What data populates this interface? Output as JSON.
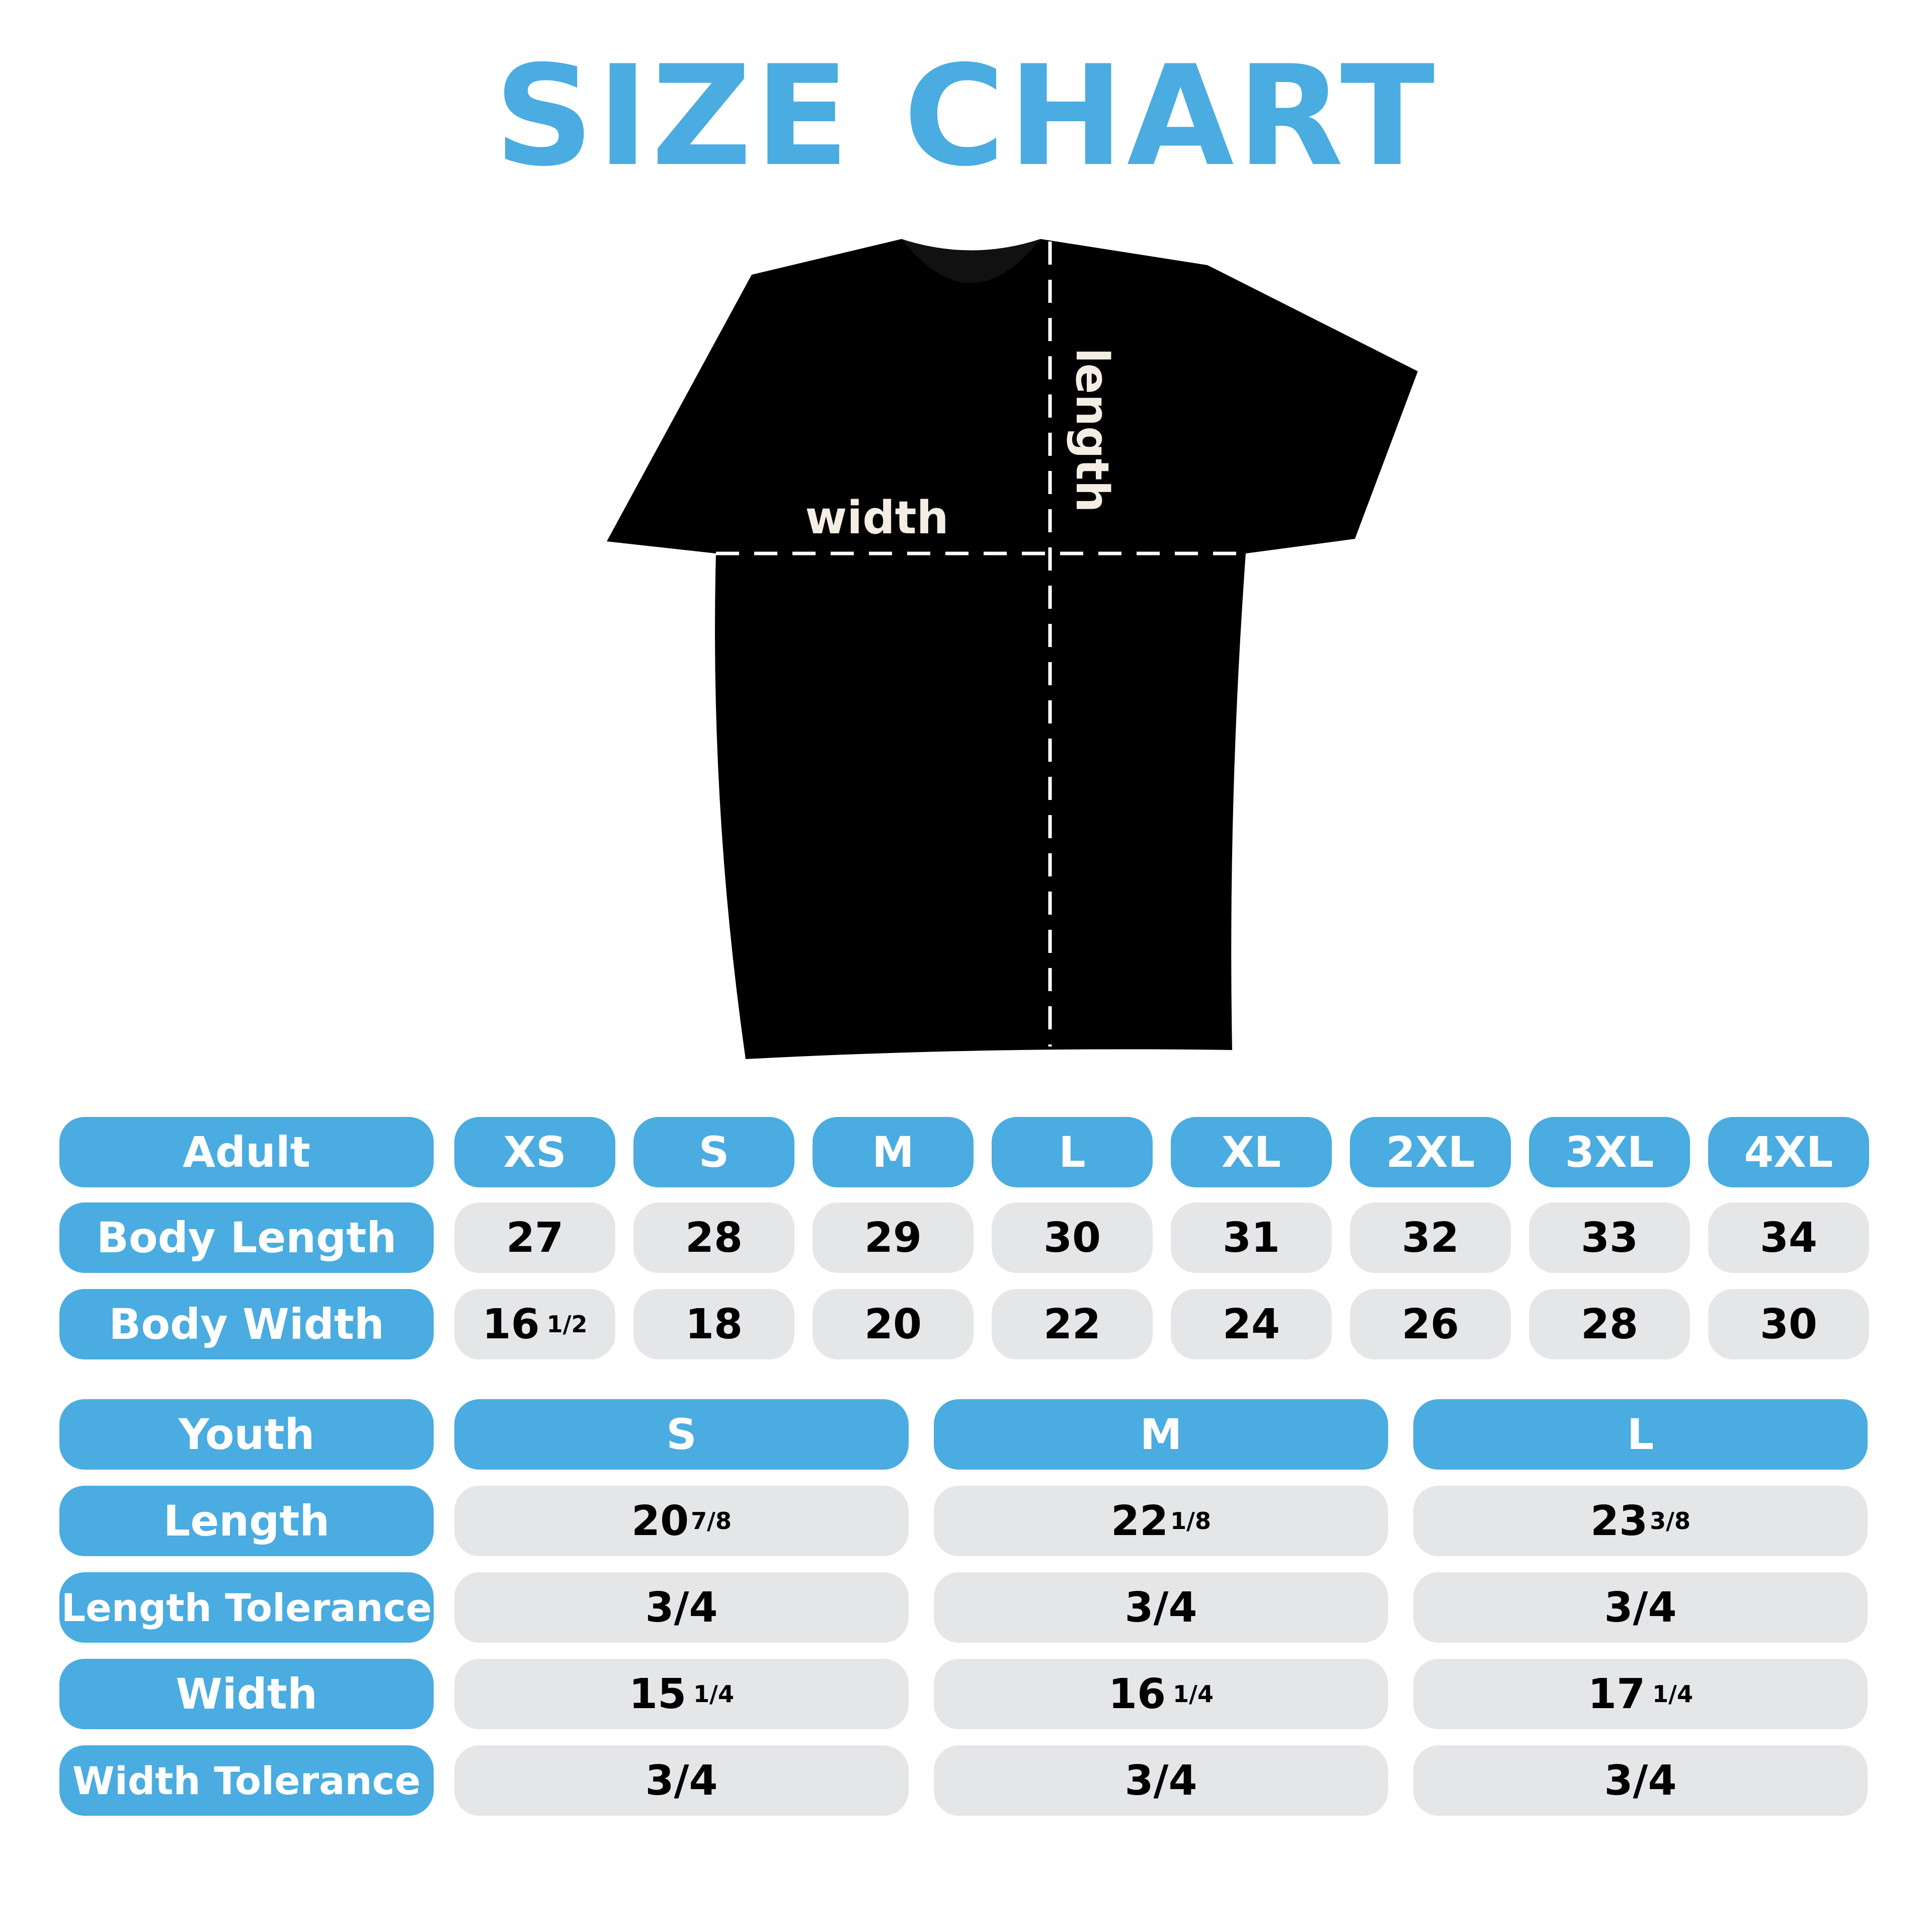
{
  "title": "SIZE CHART",
  "shirt": {
    "width_label": "width",
    "length_label": "length",
    "color": "#000000"
  },
  "colors": {
    "accent": "#4aace0",
    "cell": "#e5e6e8"
  },
  "adult": {
    "header": "Adult",
    "sizes": [
      "XS",
      "S",
      "M",
      "L",
      "XL",
      "2XL",
      "3XL",
      "4XL"
    ],
    "rows": [
      {
        "label": "Body Length",
        "values": [
          {
            "whole": "27"
          },
          {
            "whole": "28"
          },
          {
            "whole": "29"
          },
          {
            "whole": "30"
          },
          {
            "whole": "31"
          },
          {
            "whole": "32"
          },
          {
            "whole": "33"
          },
          {
            "whole": "34"
          }
        ]
      },
      {
        "label": "Body Width",
        "values": [
          {
            "whole": "16",
            "frac": "1/2"
          },
          {
            "whole": "18"
          },
          {
            "whole": "20"
          },
          {
            "whole": "22"
          },
          {
            "whole": "24"
          },
          {
            "whole": "26"
          },
          {
            "whole": "28"
          },
          {
            "whole": "30"
          }
        ]
      }
    ]
  },
  "youth": {
    "header": "Youth",
    "sizes": [
      "S",
      "M",
      "L"
    ],
    "rows": [
      {
        "label": "Length",
        "values": [
          {
            "whole": "20",
            "frac": "7/8",
            "tight": true
          },
          {
            "whole": "22",
            "frac": "1/8",
            "tight": true
          },
          {
            "whole": "23",
            "frac": "3/8",
            "tight": true
          }
        ]
      },
      {
        "label": "Length Tolerance",
        "values": [
          {
            "whole": "3/4"
          },
          {
            "whole": "3/4"
          },
          {
            "whole": "3/4"
          }
        ]
      },
      {
        "label": "Width",
        "values": [
          {
            "whole": "15",
            "frac": "1/4"
          },
          {
            "whole": "16",
            "frac": "1/4"
          },
          {
            "whole": "17",
            "frac": "1/4"
          }
        ]
      },
      {
        "label": "Width Tolerance",
        "values": [
          {
            "whole": "3/4"
          },
          {
            "whole": "3/4"
          },
          {
            "whole": "3/4"
          }
        ]
      }
    ]
  }
}
